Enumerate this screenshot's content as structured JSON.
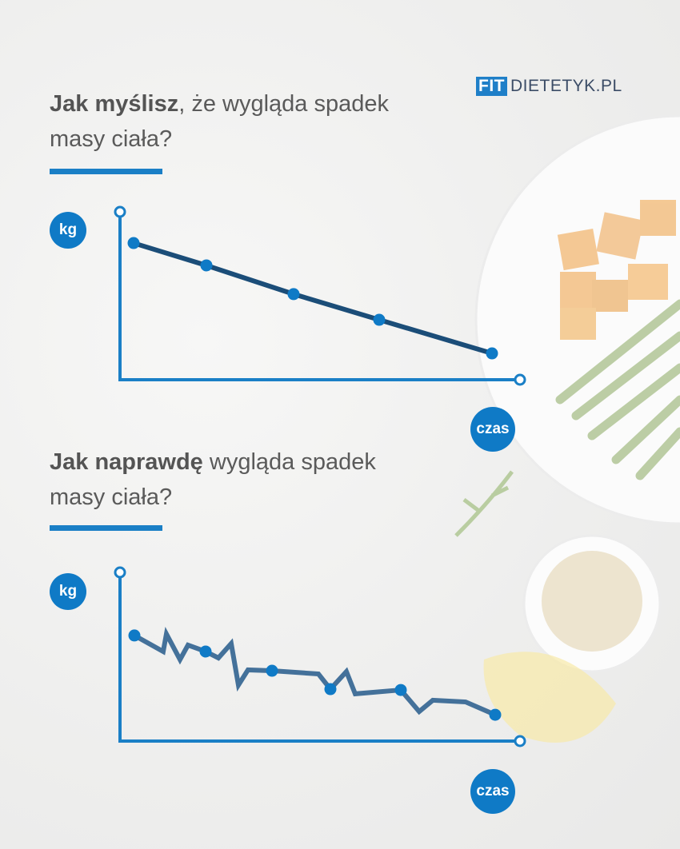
{
  "logo": {
    "fit": "FIT",
    "rest": "DIETETYK.PL"
  },
  "section1": {
    "title_bold": "Jak myślisz",
    "title_rest": ", że wygląda spadek",
    "title_line2": "masy ciała?"
  },
  "section2": {
    "title_bold": "Jak naprawdę",
    "title_rest": " wygląda spadek",
    "title_line2": "masy ciała?"
  },
  "colors": {
    "accent": "#1a7fc6",
    "line1": "#1b4d78",
    "line2": "#44719a",
    "text": "#555555"
  },
  "chart_data": [
    {
      "type": "line",
      "ylabel": "kg",
      "xlabel": "czas",
      "xlim": [
        0,
        100
      ],
      "ylim": [
        0,
        100
      ],
      "grid": false,
      "x": [
        3.4,
        21.6,
        43.4,
        64.8,
        93
      ],
      "y": [
        81.4,
        68.1,
        51,
        35.7,
        15.7
      ],
      "markers": [
        0,
        1,
        2,
        3,
        4
      ]
    },
    {
      "type": "line",
      "ylabel": "kg",
      "xlabel": "czas",
      "xlim": [
        0,
        100
      ],
      "ylim": [
        0,
        100
      ],
      "grid": false,
      "x": [
        3.6,
        10.8,
        11.6,
        15,
        17,
        21.4,
        24.6,
        27.8,
        29.6,
        32,
        38,
        49.6,
        52.6,
        56.6,
        58.8,
        70.2,
        74.8,
        78.2,
        86.4,
        93.8
      ],
      "y": [
        62.6,
        53.1,
        63.5,
        48.3,
        56.9,
        53.1,
        49.3,
        57.8,
        33.2,
        42.2,
        41.7,
        39.8,
        30.8,
        41.2,
        28,
        30.3,
        17.5,
        24.2,
        23.2,
        15.6
      ],
      "markers": [
        0,
        5,
        10,
        12,
        15,
        19
      ]
    }
  ]
}
